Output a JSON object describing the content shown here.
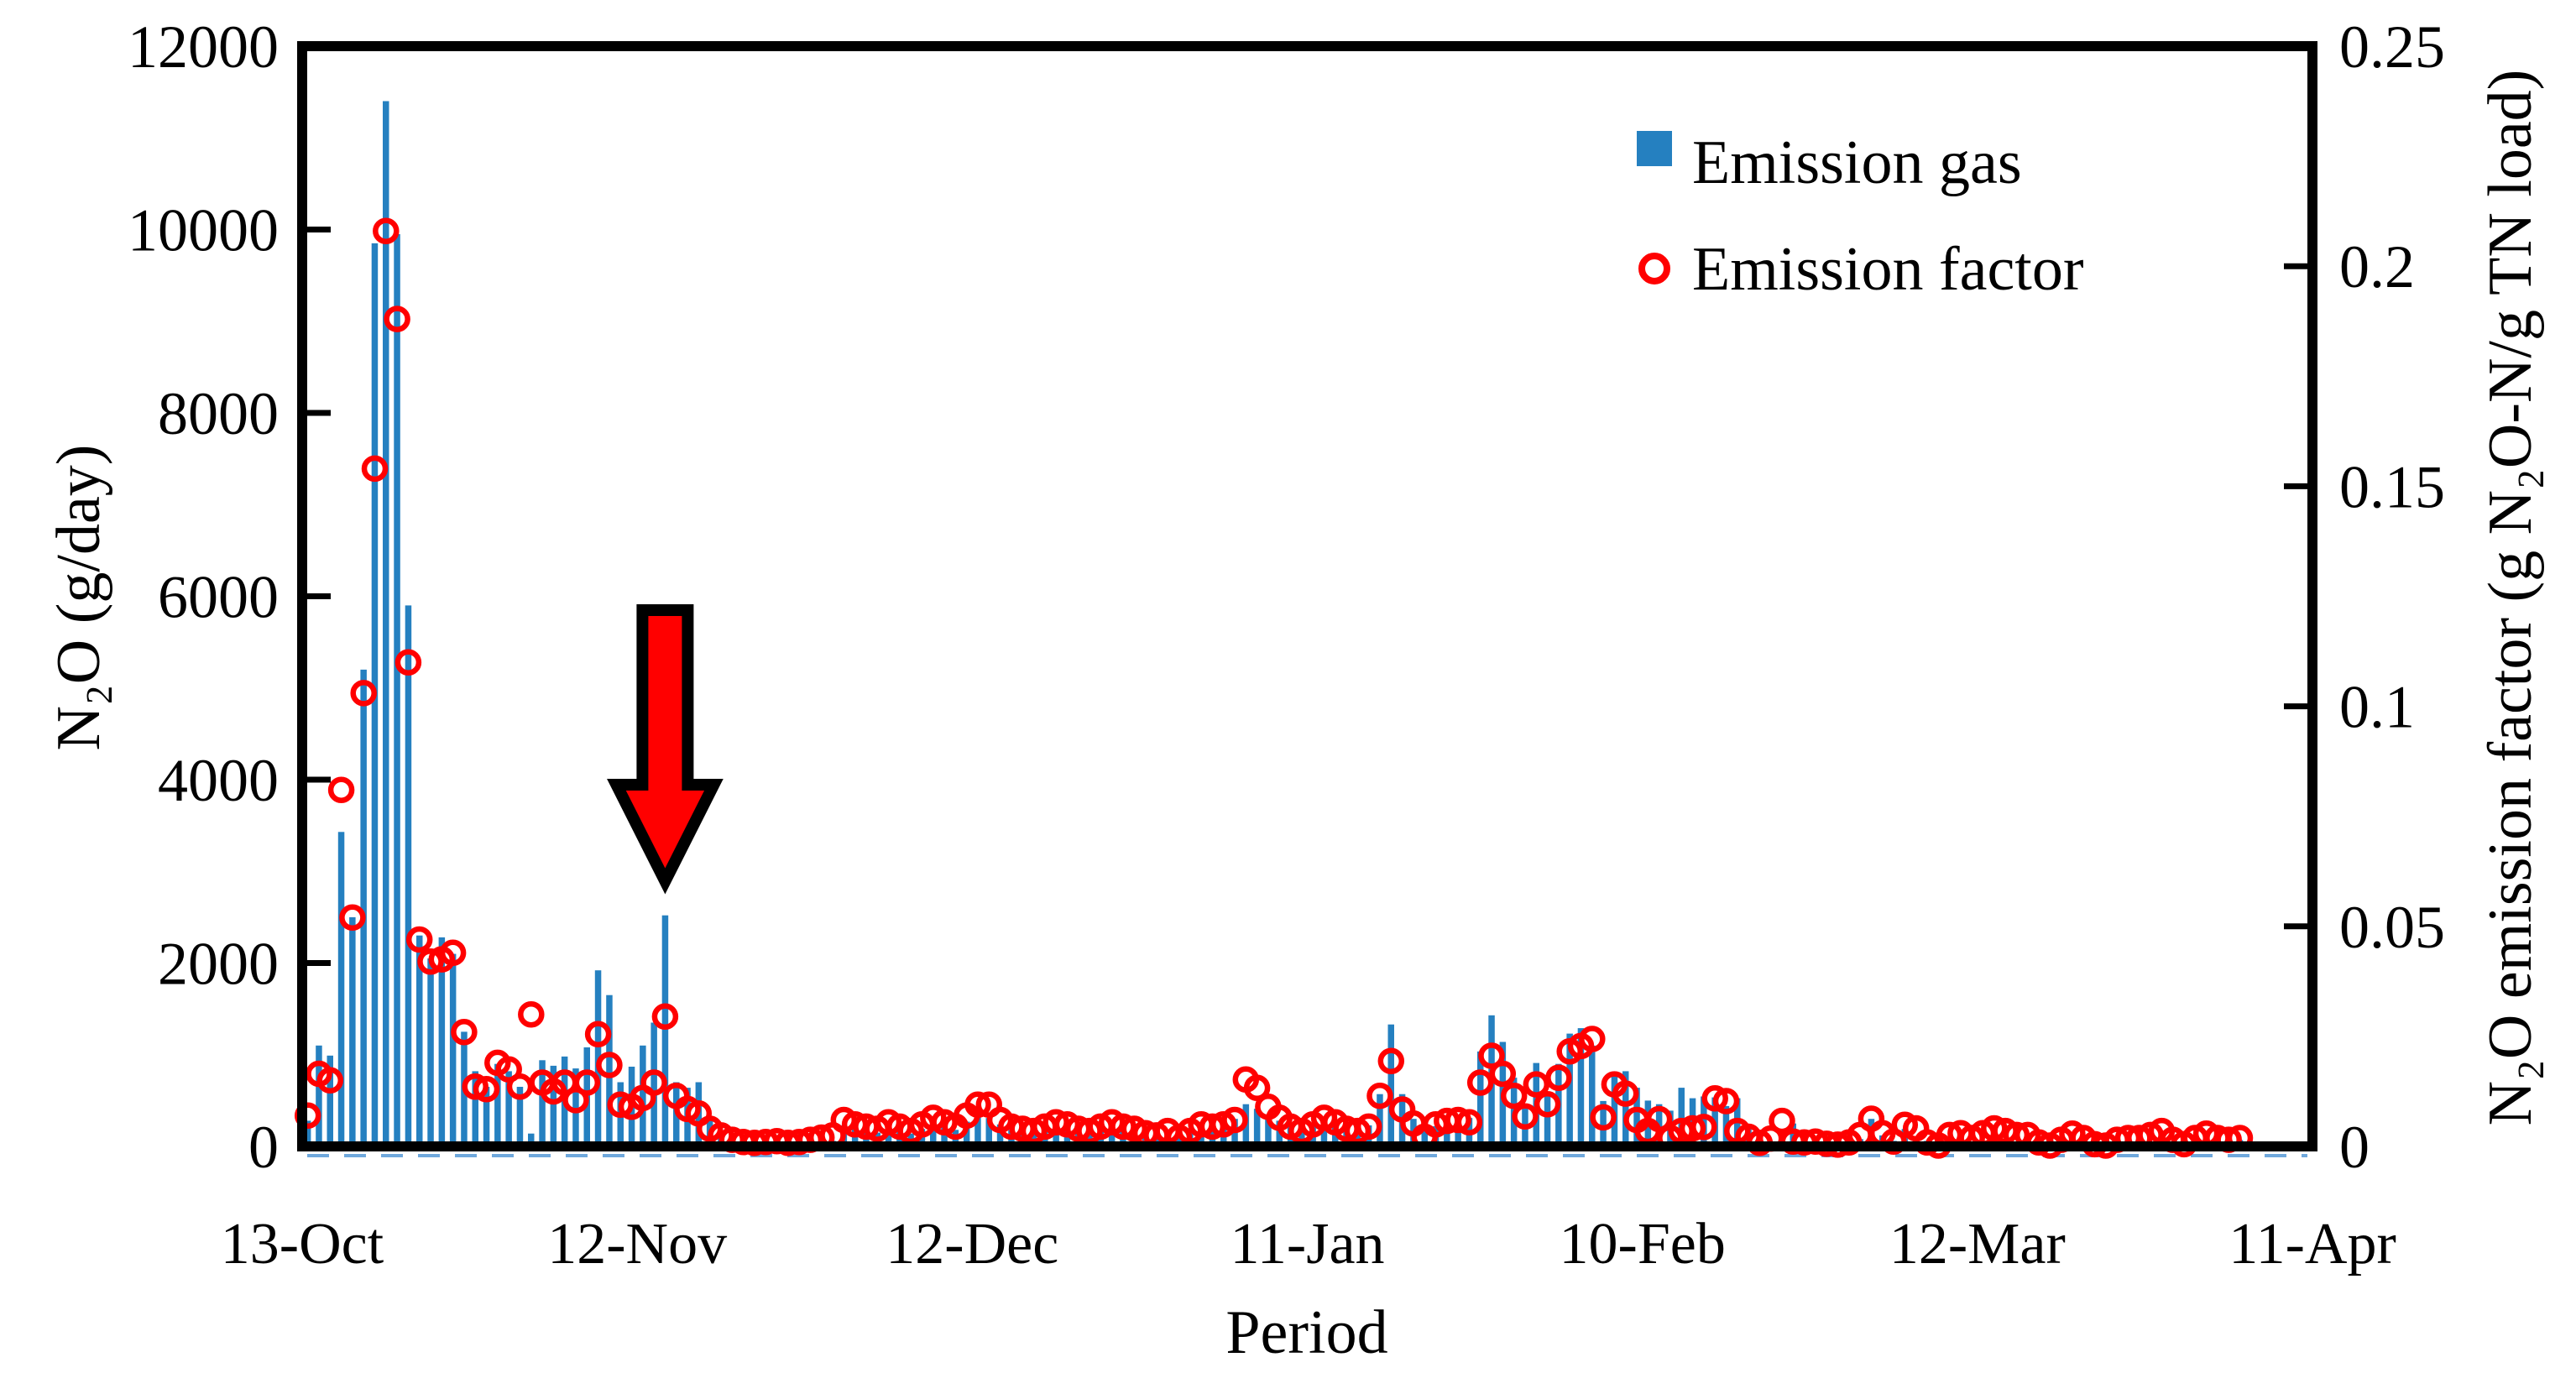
{
  "chart_data": {
    "type": "bar",
    "title": "",
    "xlabel": "Period",
    "ylabel_left": "N₂O (g/day)",
    "ylabel_right": "N₂O emission factor (g N₂O-N/g TN load)",
    "x_tick_labels": [
      "13-Oct",
      "12-Nov",
      "12-Dec",
      "11-Jan",
      "10-Feb",
      "12-Mar",
      "11-Apr"
    ],
    "x_days_total": 180,
    "x_days_per_tick": 30,
    "ylim_left": [
      0,
      12000
    ],
    "yticks_left": [
      0,
      2000,
      4000,
      6000,
      8000,
      10000,
      12000
    ],
    "ylim_right": [
      0,
      0.25
    ],
    "yticks_right": [
      0,
      0.05,
      0.1,
      0.15,
      0.2,
      0.25
    ],
    "yticks_right_labels": [
      "0",
      "0.05",
      "0.1",
      "0.15",
      "0.2",
      "0.25"
    ],
    "grid": false,
    "legend_position": "upper-right-inside",
    "legend": [
      {
        "label": "Emission gas",
        "marker": "square",
        "color": "#2580c0"
      },
      {
        "label": "Emission factor",
        "marker": "open-circle",
        "color": "#ff0000"
      }
    ],
    "series": [
      {
        "name": "Emission gas",
        "axis": "left",
        "unit": "g/day",
        "values": [
          280,
          1100,
          990,
          3430,
          2500,
          5200,
          9850,
          11400,
          9950,
          5900,
          2300,
          2050,
          2280,
          2100,
          1250,
          820,
          650,
          900,
          820,
          650,
          140,
          940,
          880,
          980,
          850,
          1080,
          1920,
          1650,
          700,
          870,
          1100,
          1350,
          2520,
          700,
          640,
          700,
          300,
          150,
          60,
          40,
          30,
          30,
          40,
          30,
          30,
          40,
          50,
          60,
          230,
          200,
          180,
          150,
          210,
          170,
          140,
          190,
          260,
          230,
          180,
          270,
          390,
          310,
          240,
          180,
          150,
          130,
          180,
          230,
          200,
          160,
          130,
          170,
          210,
          180,
          150,
          120,
          100,
          140,
          160,
          200,
          240,
          230,
          250,
          300,
          460,
          410,
          350,
          280,
          220,
          180,
          250,
          310,
          270,
          200,
          180,
          230,
          570,
          1330,
          570,
          300,
          250,
          220,
          280,
          300,
          310,
          1035,
          1430,
          1140,
          750,
          430,
          910,
          590,
          900,
          1230,
          1290,
          1100,
          495,
          810,
          820,
          640,
          500,
          460,
          390,
          640,
          525,
          545,
          535,
          440,
          525,
          190,
          100,
          45,
          60,
          250,
          80,
          60,
          50,
          40,
          60,
          80,
          300,
          120,
          60,
          190,
          100,
          60,
          40,
          30,
          40,
          50,
          60,
          40,
          30,
          40,
          60,
          80,
          60,
          50,
          40,
          30,
          40,
          50,
          60,
          70,
          50,
          40,
          30,
          40,
          60,
          80,
          100,
          120,
          90,
          70,
          0,
          0,
          0,
          0,
          0,
          0
        ]
      },
      {
        "name": "Emission factor",
        "axis": "right",
        "unit": "g N₂O-N/g TN load",
        "values": [
          0.007,
          0.0165,
          0.015,
          0.081,
          0.052,
          0.103,
          0.154,
          0.208,
          0.188,
          0.11,
          0.047,
          0.042,
          0.0425,
          0.044,
          0.026,
          0.0136,
          0.013,
          0.019,
          0.0175,
          0.0136,
          0.03,
          0.0145,
          0.0125,
          0.0145,
          0.0105,
          0.0145,
          0.0255,
          0.0185,
          0.0095,
          0.009,
          0.011,
          0.0145,
          0.0295,
          0.0115,
          0.0085,
          0.0075,
          0.004,
          0.0025,
          0.0015,
          0.001,
          0.0008,
          0.001,
          0.0012,
          0.0008,
          0.001,
          0.0015,
          0.002,
          0.0025,
          0.006,
          0.005,
          0.0045,
          0.004,
          0.0055,
          0.0045,
          0.0035,
          0.005,
          0.0065,
          0.0055,
          0.0045,
          0.007,
          0.0095,
          0.0095,
          0.006,
          0.0045,
          0.004,
          0.0035,
          0.0045,
          0.0055,
          0.005,
          0.004,
          0.0035,
          0.0045,
          0.0055,
          0.0045,
          0.004,
          0.003,
          0.0025,
          0.0035,
          0.002,
          0.0035,
          0.005,
          0.0045,
          0.005,
          0.006,
          0.0152,
          0.0133,
          0.009,
          0.0065,
          0.0045,
          0.0035,
          0.005,
          0.0065,
          0.0055,
          0.004,
          0.0035,
          0.0045,
          0.0115,
          0.0194,
          0.0084,
          0.0052,
          0.0022,
          0.005,
          0.0058,
          0.006,
          0.0055,
          0.0145,
          0.0206,
          0.0165,
          0.0115,
          0.0068,
          0.0141,
          0.0096,
          0.0156,
          0.0216,
          0.0228,
          0.0244,
          0.0066,
          0.0141,
          0.012,
          0.006,
          0.0035,
          0.0062,
          0.0019,
          0.0035,
          0.0041,
          0.0044,
          0.0109,
          0.0103,
          0.0035,
          0.0022,
          0.0008,
          0.0018,
          0.0058,
          0.0011,
          0.0009,
          0.0011,
          0.0006,
          0.0004,
          0.0009,
          0.0026,
          0.0063,
          0.003,
          0.0011,
          0.0049,
          0.0041,
          0.0009,
          0.0002,
          0.0026,
          0.003,
          0.0019,
          0.003,
          0.0041,
          0.0035,
          0.0026,
          0.0026,
          0.0009,
          0.0002,
          0.0015,
          0.0029,
          0.0019,
          0.0005,
          0.0002,
          0.0015,
          0.0019,
          0.0019,
          0.0026,
          0.0035,
          0.0015,
          0.0005,
          0.0019,
          0.0029,
          0.0019,
          0.0015,
          0.0019,
          null,
          null,
          null,
          null,
          null,
          null
        ]
      }
    ],
    "annotation": {
      "type": "down-arrow",
      "day_index": 32.5,
      "fill": "#ff0000",
      "outline": "#000000",
      "shaft_top_y": 727,
      "shaft_half_width": 27,
      "head_top_y": 935,
      "head_half_width": 58,
      "tip_y": 1050
    },
    "colors": {
      "bar": "#2580c0",
      "point": "#ff0000",
      "frame": "#000000",
      "zero_dash_line": "#6fa8dc"
    }
  }
}
